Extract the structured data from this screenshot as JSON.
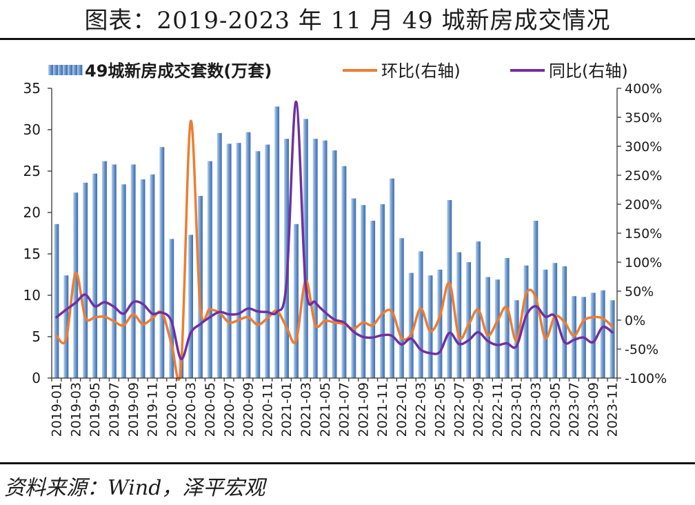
{
  "source": "资料来源：Wind，泽平宏观",
  "colors": {
    "bar_light": "#b9d0ec",
    "bar": "#6b98cf",
    "bar_dark": "#3b6aa6",
    "mom": "#ed7d31",
    "yoy": "#7030a0",
    "axis": "#333333",
    "rule": "#111111"
  },
  "chart_data": {
    "type": "bar",
    "title": "图表：2019-2023 年 11 月 49 城新房成交情况",
    "legend_position": "top",
    "grid": false,
    "categories": [
      "2019-01",
      "2019-02",
      "2019-03",
      "2019-04",
      "2019-05",
      "2019-06",
      "2019-07",
      "2019-08",
      "2019-09",
      "2019-10",
      "2019-11",
      "2019-12",
      "2020-01",
      "2020-02",
      "2020-03",
      "2020-04",
      "2020-05",
      "2020-06",
      "2020-07",
      "2020-08",
      "2020-09",
      "2020-10",
      "2020-11",
      "2020-12",
      "2021-01",
      "2021-02",
      "2021-03",
      "2021-04",
      "2021-05",
      "2021-06",
      "2021-07",
      "2021-08",
      "2021-09",
      "2021-10",
      "2021-11",
      "2021-12",
      "2022-01",
      "2022-02",
      "2022-03",
      "2022-04",
      "2022-05",
      "2022-06",
      "2022-07",
      "2022-08",
      "2022-09",
      "2022-10",
      "2022-11",
      "2022-12",
      "2023-01",
      "2023-02",
      "2023-03",
      "2023-04",
      "2023-05",
      "2023-06",
      "2023-07",
      "2023-08",
      "2023-09",
      "2023-10",
      "2023-11"
    ],
    "x_tick_labels": [
      "2019-01",
      "2019-03",
      "2019-05",
      "2019-07",
      "2019-09",
      "2019-11",
      "2020-01",
      "2020-03",
      "2020-05",
      "2020-07",
      "2020-09",
      "2020-11",
      "2021-01",
      "2021-03",
      "2021-05",
      "2021-07",
      "2021-09",
      "2021-11",
      "2022-01",
      "2022-03",
      "2022-05",
      "2022-07",
      "2022-09",
      "2022-11",
      "2023-01",
      "2023-03",
      "2023-05",
      "2023-07",
      "2023-09",
      "2023-11"
    ],
    "y_left": {
      "range": [
        0,
        35
      ],
      "ticks": [
        "0",
        "5",
        "10",
        "15",
        "20",
        "25",
        "30",
        "35"
      ]
    },
    "y_right": {
      "range": [
        -100,
        400
      ],
      "ticks": [
        "-100%",
        "-50%",
        "0%",
        "50%",
        "100%",
        "150%",
        "200%",
        "250%",
        "300%",
        "350%",
        "400%"
      ]
    },
    "series": [
      {
        "name": "49城新房成交套数(万套)",
        "type": "bar",
        "axis": "left",
        "values": [
          18.6,
          12.4,
          22.4,
          23.6,
          24.7,
          26.2,
          25.8,
          23.4,
          25.8,
          24.0,
          24.6,
          27.9,
          16.8,
          2.4,
          17.3,
          22.0,
          26.2,
          29.6,
          28.3,
          28.4,
          29.7,
          27.4,
          28.2,
          32.8,
          28.9,
          18.6,
          31.3,
          28.9,
          28.7,
          27.5,
          25.6,
          21.7,
          20.9,
          19.0,
          21.0,
          24.1,
          16.9,
          12.7,
          15.3,
          12.4,
          13.1,
          21.5,
          15.2,
          14.0,
          16.5,
          12.2,
          11.9,
          14.5,
          9.4,
          13.6,
          19.0,
          13.1,
          13.9,
          13.5,
          9.9,
          9.8,
          10.3,
          10.6,
          9.4
        ]
      },
      {
        "name": "环比(右轴)",
        "type": "line",
        "axis": "right",
        "smooth": true,
        "values": [
          -27,
          -33,
          81,
          5,
          5,
          6,
          -2,
          -9,
          10,
          -7,
          3,
          13,
          -40,
          -80,
          343,
          24,
          19,
          13,
          -4,
          0,
          5,
          -8,
          3,
          16,
          -12,
          -36,
          68,
          -8,
          -1,
          -4,
          -7,
          -15,
          -4,
          -9,
          11,
          15,
          -30,
          -25,
          20,
          -19,
          6,
          64,
          -29,
          -8,
          18,
          -26,
          -2,
          22,
          -35,
          45,
          40,
          -31,
          6,
          -3,
          -27,
          -1,
          5,
          3,
          -11
        ]
      },
      {
        "name": "同比(右轴)",
        "type": "line",
        "axis": "right",
        "smooth": true,
        "values": [
          5,
          18,
          30,
          44,
          24,
          31,
          23,
          11,
          31,
          28,
          11,
          13,
          -2,
          -67,
          -22,
          -7,
          5,
          14,
          10,
          11,
          20,
          15,
          14,
          14,
          64,
          377,
          60,
          31,
          14,
          1,
          -4,
          -20,
          -29,
          -30,
          -26,
          -27,
          -42,
          -32,
          -51,
          -57,
          -55,
          -22,
          -41,
          -35,
          -21,
          -36,
          -43,
          -40,
          -45,
          7,
          24,
          6,
          7,
          -38,
          -34,
          -30,
          -38,
          -12,
          -21
        ]
      }
    ]
  }
}
